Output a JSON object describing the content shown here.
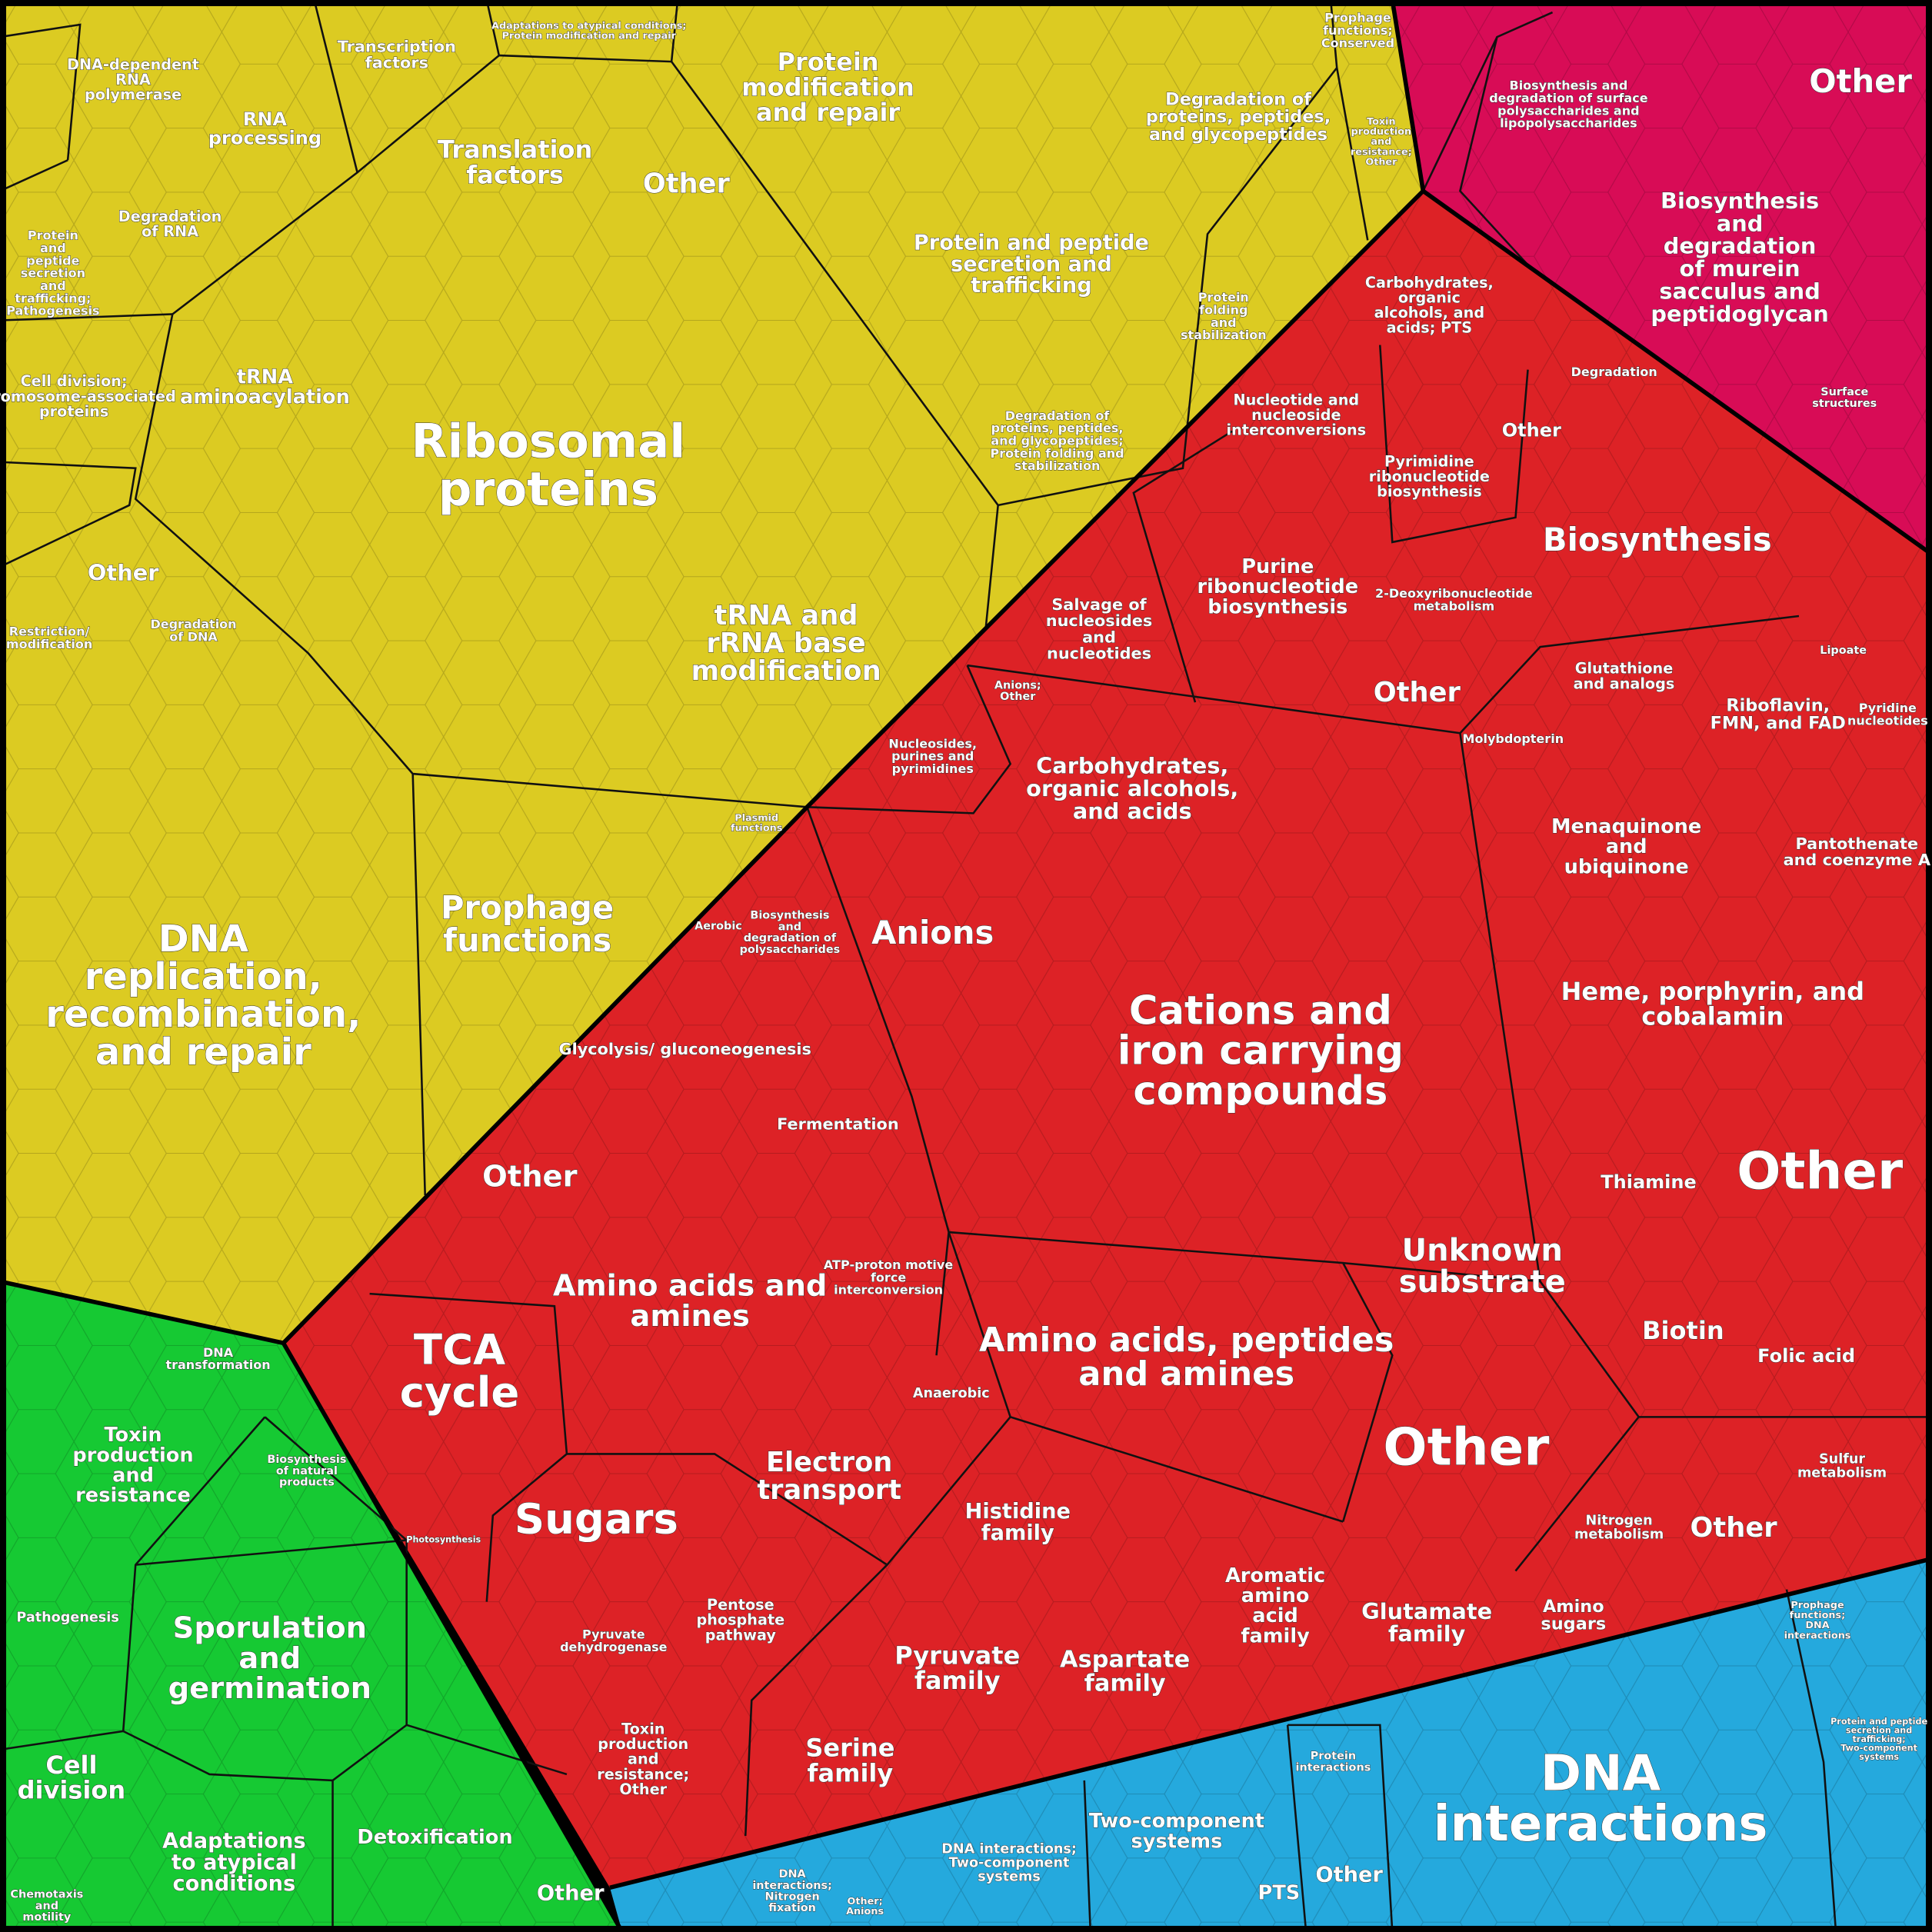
{
  "labels": [
    "DNA-dependent RNA polymerase",
    "Transcription factors",
    "Adaptations to atypical conditions; Protein modification and repair",
    "Protein modification and repair",
    "Prophage functions; Conserved",
    "RNA processing",
    "Translation factors",
    "Other",
    "Degradation of proteins, peptides, and glycopeptides",
    "Degradation of RNA",
    "Protein and peptide secretion and trafficking",
    "Protein and peptide secretion and trafficking; Pathogenesis",
    "Protein folding and stabilization",
    "Toxin production and resistance; Other",
    "Cell division; Chromosome-associated proteins",
    "tRNA aminoacylation",
    "Ribosomal proteins",
    "Degradation of proteins, peptides, and glycopeptides; Protein folding and stabilization",
    "Other",
    "Restriction/ modification",
    "Degradation of DNA",
    "tRNA and rRNA base modification",
    "Plasmid functions",
    "DNA replication, recombination, and repair",
    "Prophage functions",
    "Other",
    "Biosynthesis and degradation of surface polysaccharides and lipopolysaccharides",
    "Biosynthesis and degradation of murein sacculus and peptidoglycan",
    "Surface structures",
    "Carbohydrates, organic alcohols, and acids; PTS",
    "Nucleotide and nucleoside interconversions",
    "Degradation",
    "Pyrimidine ribonucleotide biosynthesis",
    "Other",
    "Biosynthesis",
    "Purine ribonucleotide biosynthesis",
    "Salvage of nucleosides and nucleotides",
    "2-Deoxyribonucleotide metabolism",
    "Other",
    "Glutathione and analogs",
    "Riboflavin, FMN, and FAD",
    "Lipoate",
    "Pyridine nucleotides",
    "Molybdopterin",
    "Anions; Other",
    "Nucleosides, purines and pyrimidines",
    "Carbohydrates, organic alcohols, and acids",
    "Menaquinone and ubiquinone",
    "Pantothenate and coenzyme A",
    "Anions",
    "Biosynthesis and degradation of polysaccharides",
    "Aerobic",
    "Cations and iron carrying compounds",
    "Heme, porphyrin, and cobalamin",
    "Glycolysis/ gluconeogenesis",
    "Fermentation",
    "Other",
    "Thiamine",
    "Other",
    "Unknown substrate",
    "Amino acids and amines",
    "ATP-proton motive force interconversion",
    "Amino acids, peptides and amines",
    "TCA cycle",
    "Biotin",
    "Folic acid",
    "Anaerobic",
    "Other",
    "Sugars",
    "Electron transport",
    "Histidine family",
    "Sulfur metabolism",
    "Nitrogen metabolism",
    "Other",
    "Aromatic amino acid family",
    "Glutamate family",
    "Amino sugars",
    "Pentose phosphate pathway",
    "Pyruvate dehydrogenase",
    "Pyruvate family",
    "Aspartate family",
    "Toxin production and resistance; Other",
    "Serine family",
    "Photosynthesis",
    "DNA transformation",
    "Toxin production and resistance",
    "Biosynthesis of natural products",
    "Pathogenesis",
    "Sporulation and germination",
    "Cell division",
    "Adaptations to atypical conditions",
    "Detoxification",
    "Other",
    "Chemotaxis and motility",
    "DNA interactions",
    "Prophage functions; DNA interactions",
    "Protein interactions",
    "Two-component systems",
    "DNA interactions; Two-component systems",
    "PTS",
    "Other",
    "DNA interactions; Nitrogen fixation",
    "Other; Anions",
    "Protein and peptide secretion and trafficking; Two-component systems"
  ]
}
